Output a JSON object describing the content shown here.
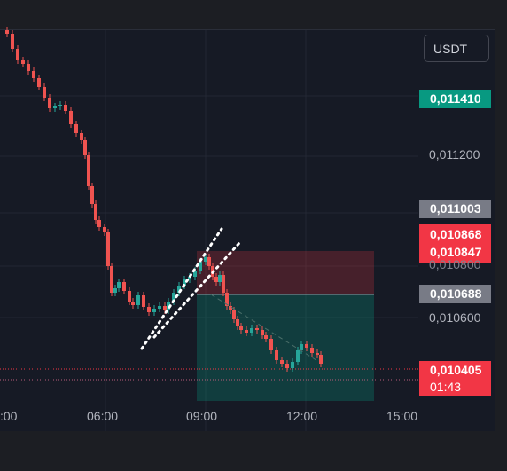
{
  "header": {
    "currency": "USDT"
  },
  "price_axis": {
    "ticks": [
      "0,011200",
      "0,010800",
      "0,010600"
    ]
  },
  "price_labels": {
    "last_high": "0,011410",
    "entry": "0,011003",
    "stop_upper": "0,010868",
    "stop_lower": "0,010847",
    "target": "0,010688",
    "current_price": "0,010405",
    "countdown": "01:43"
  },
  "time_axis": {
    "ticks": [
      ":00",
      "06:00",
      "09:00",
      "12:00",
      "15:00"
    ]
  },
  "colors": {
    "up": "#26a69a",
    "down": "#ef5350",
    "background": "#161a25",
    "stop_zone": "rgba(242,54,69,0.22)",
    "profit_zone": "rgba(8,153,129,0.28)",
    "accent_green": "#089981",
    "accent_red": "#f23645",
    "accent_gray": "#787b86"
  },
  "icons": {
    "channel_tool": "dotted-parallel-channel-icon"
  }
}
